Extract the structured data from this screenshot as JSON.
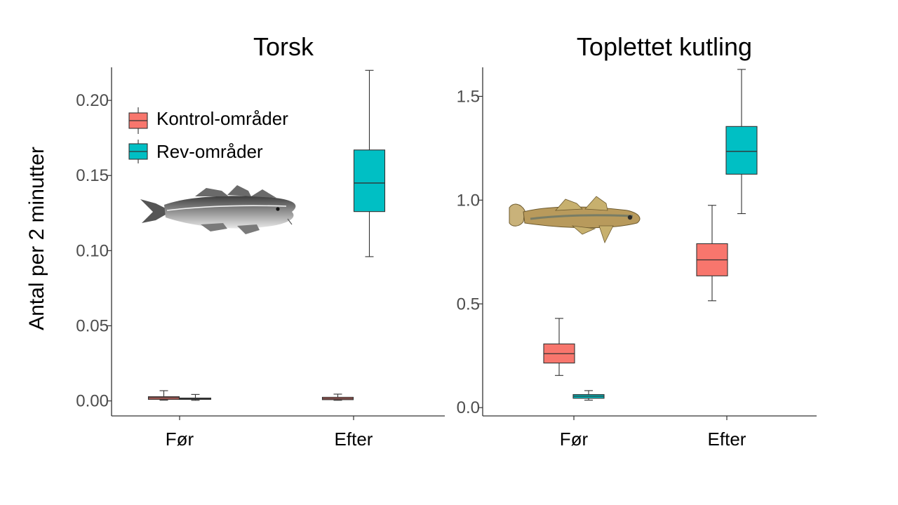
{
  "figure": {
    "y_axis_label": "Antal per 2 minutter"
  },
  "legend": {
    "items": [
      {
        "label": "Kontrol-områder",
        "color": "#F8766D"
      },
      {
        "label": "Rev-områder",
        "color": "#00BFC4"
      }
    ]
  },
  "chart_data": [
    {
      "type": "boxplot",
      "title": "Torsk",
      "ylabel": "Antal per 2 minutter",
      "categories": [
        "Før",
        "Efter"
      ],
      "ylim": [
        -0.01,
        0.222
      ],
      "yticks": [
        0.0,
        0.05,
        0.1,
        0.15,
        0.2
      ],
      "ytick_labels": [
        "0.00",
        "0.05",
        "0.10",
        "0.15",
        "0.20"
      ],
      "illustration": "cod-fish-illustration",
      "series": [
        {
          "name": "Kontrol-områder",
          "color": "#F8766D",
          "boxes": [
            {
              "category": "Før",
              "whisker_low": 0.0005,
              "q1": 0.001,
              "median": 0.002,
              "q3": 0.0028,
              "whisker_high": 0.0068
            },
            {
              "category": "Efter",
              "whisker_low": 0.0004,
              "q1": 0.0008,
              "median": 0.0015,
              "q3": 0.0024,
              "whisker_high": 0.0045
            }
          ]
        },
        {
          "name": "Rev-områder",
          "color": "#00BFC4",
          "boxes": [
            {
              "category": "Før",
              "whisker_low": 0.0004,
              "q1": 0.001,
              "median": 0.0014,
              "q3": 0.0019,
              "whisker_high": 0.0043
            },
            {
              "category": "Efter",
              "whisker_low": 0.096,
              "q1": 0.126,
              "median": 0.145,
              "q3": 0.167,
              "whisker_high": 0.22
            }
          ]
        }
      ]
    },
    {
      "type": "boxplot",
      "title": "Toplettet kutling",
      "ylabel": "",
      "categories": [
        "Før",
        "Efter"
      ],
      "ylim": [
        -0.04,
        1.64
      ],
      "yticks": [
        0.0,
        0.5,
        1.0,
        1.5
      ],
      "ytick_labels": [
        "0.0",
        "0.5",
        "1.0",
        "1.5"
      ],
      "illustration": "goby-fish-illustration",
      "series": [
        {
          "name": "Kontrol-områder",
          "color": "#F8766D",
          "boxes": [
            {
              "category": "Før",
              "whisker_low": 0.155,
              "q1": 0.215,
              "median": 0.26,
              "q3": 0.307,
              "whisker_high": 0.43
            },
            {
              "category": "Efter",
              "whisker_low": 0.515,
              "q1": 0.635,
              "median": 0.712,
              "q3": 0.79,
              "whisker_high": 0.975
            }
          ]
        },
        {
          "name": "Rev-områder",
          "color": "#00BFC4",
          "boxes": [
            {
              "category": "Før",
              "whisker_low": 0.036,
              "q1": 0.045,
              "median": 0.055,
              "q3": 0.063,
              "whisker_high": 0.082
            },
            {
              "category": "Efter",
              "whisker_low": 0.935,
              "q1": 1.125,
              "median": 1.235,
              "q3": 1.355,
              "whisker_high": 1.63
            }
          ]
        }
      ]
    }
  ]
}
